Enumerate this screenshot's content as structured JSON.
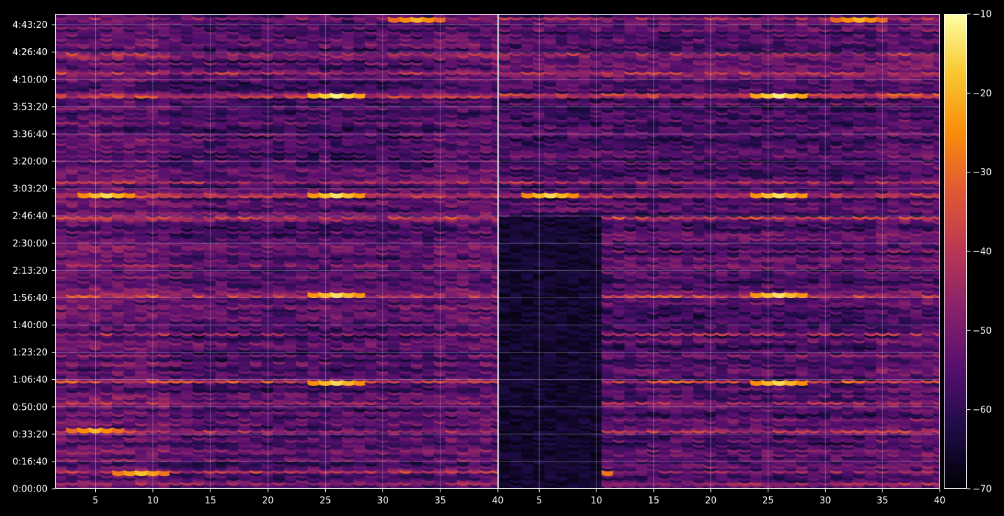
{
  "chart_data": {
    "type": "heatmap",
    "title": "",
    "xlabel": "",
    "ylabel": "",
    "colormap": "inferno",
    "background_color": "#000000",
    "panels": [
      {
        "name": "",
        "xlim": [
          1.5,
          40
        ],
        "xticks": [
          5,
          10,
          15,
          20,
          25,
          30,
          35,
          40
        ]
      },
      {
        "name": "",
        "xlim": [
          1.5,
          40
        ],
        "xticks": [
          5,
          10,
          15,
          20,
          25,
          30,
          35,
          40
        ]
      }
    ],
    "y_axis": {
      "unit": "time (h:mm:ss)",
      "ylim_seconds": [
        0,
        17400
      ],
      "tick_labels": [
        "0:00:00",
        "0:16:40",
        "0:33:20",
        "0:50:00",
        "1:06:40",
        "1:23:20",
        "1:40:00",
        "1:56:40",
        "2:13:20",
        "2:30:00",
        "2:46:40",
        "3:03:20",
        "3:20:00",
        "3:36:40",
        "3:53:20",
        "4:10:00",
        "4:26:40",
        "4:43:20"
      ],
      "tick_seconds": [
        0,
        1000,
        2000,
        3000,
        4000,
        5000,
        6000,
        7000,
        8000,
        9000,
        10000,
        11000,
        12000,
        13000,
        14000,
        15000,
        16000,
        17000
      ]
    },
    "grid": true,
    "colorbar": {
      "range": [
        -70,
        -10
      ],
      "ticks": [
        -70,
        -60,
        -50,
        -40,
        -30,
        -20,
        -10
      ],
      "tick_labels": [
        "−70",
        "−60",
        "−50",
        "−40",
        "−30",
        "−20",
        "−10"
      ]
    },
    "hot_rows": [
      {
        "time_s": 200,
        "boost": 10,
        "panels": [
          0,
          1
        ]
      },
      {
        "time_s": 650,
        "boost": 16,
        "panels": [
          0,
          1
        ]
      },
      {
        "time_s": 1400,
        "boost": 8,
        "panels": [
          0,
          1
        ]
      },
      {
        "time_s": 2150,
        "boost": 18,
        "panels": [
          0,
          1
        ]
      },
      {
        "time_s": 3200,
        "boost": 10,
        "panels": [
          0,
          1
        ]
      },
      {
        "time_s": 3950,
        "boost": 22,
        "panels": [
          0,
          1
        ]
      },
      {
        "time_s": 4900,
        "boost": 10,
        "panels": [
          0,
          1
        ]
      },
      {
        "time_s": 5700,
        "boost": 12,
        "panels": [
          0,
          1
        ]
      },
      {
        "time_s": 7100,
        "boost": 24,
        "panels": [
          0,
          1
        ]
      },
      {
        "time_s": 8200,
        "boost": 12,
        "panels": [
          0,
          1
        ]
      },
      {
        "time_s": 9950,
        "boost": 20,
        "panels": [
          0,
          1
        ]
      },
      {
        "time_s": 10800,
        "boost": 22,
        "panels": [
          0,
          1
        ]
      },
      {
        "time_s": 11250,
        "boost": 14,
        "panels": [
          0,
          1
        ]
      },
      {
        "time_s": 14450,
        "boost": 24,
        "panels": [
          0,
          1
        ]
      },
      {
        "time_s": 15250,
        "boost": 16,
        "panels": [
          0,
          1
        ]
      },
      {
        "time_s": 15950,
        "boost": 18,
        "panels": [
          0,
          1
        ]
      },
      {
        "time_s": 17250,
        "boost": 12,
        "panels": [
          0,
          1
        ]
      }
    ],
    "hot_spots": [
      {
        "x": 26,
        "time_s": 14450,
        "value": -12
      },
      {
        "x": 26,
        "time_s": 10800,
        "value": -14
      },
      {
        "x": 26,
        "time_s": 7100,
        "value": -14
      },
      {
        "x": 26,
        "time_s": 3950,
        "value": -15
      },
      {
        "x": 6,
        "time_s": 10800,
        "value": -15
      },
      {
        "x": 9,
        "time_s": 650,
        "value": -18
      },
      {
        "x": 33,
        "time_s": 17250,
        "value": -20
      },
      {
        "x": 5,
        "time_s": 2150,
        "value": -20
      }
    ],
    "quiet_region": {
      "panel": 1,
      "x_range": [
        2,
        10
      ],
      "time_s_range": [
        0,
        10000
      ],
      "value": -68
    }
  }
}
